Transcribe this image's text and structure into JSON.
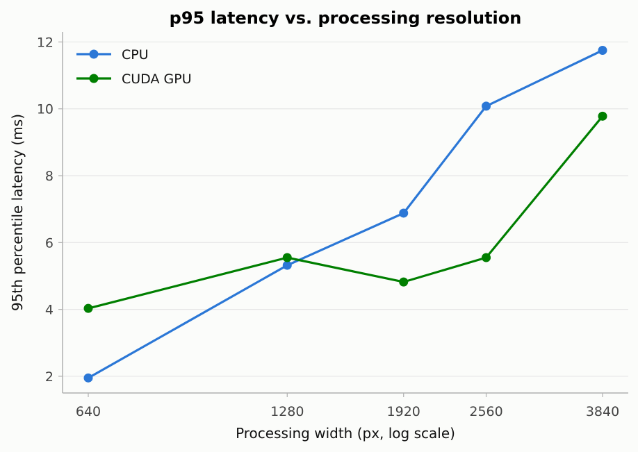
{
  "chart_data": {
    "type": "line",
    "title": "p95 latency vs. processing resolution",
    "xlabel": "Processing width (px, log scale)",
    "ylabel": "95th percentile latency (ms)",
    "x_scale": "log",
    "x": [
      640,
      1280,
      1920,
      2560,
      3840
    ],
    "x_tick_labels": [
      "640",
      "1280",
      "1920",
      "2560",
      "3840"
    ],
    "y_ticks": [
      2,
      4,
      6,
      8,
      10,
      12
    ],
    "ylim": [
      1.5,
      12.3
    ],
    "grid": "horizontal",
    "legend_position": "top-left",
    "series": [
      {
        "name": "CPU",
        "color": "#2b77d6",
        "values": [
          1.95,
          5.32,
          6.88,
          10.08,
          11.75
        ]
      },
      {
        "name": "CUDA GPU",
        "color": "#007f00",
        "values": [
          4.03,
          5.55,
          4.82,
          5.55,
          9.78
        ]
      }
    ]
  }
}
